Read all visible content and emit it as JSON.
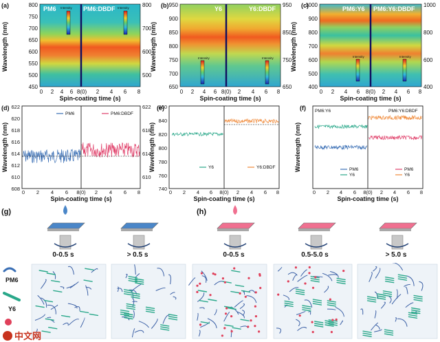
{
  "heatmaps": [
    {
      "label": "(a)",
      "left": "PM6",
      "right": "PM6:DBDF",
      "ylim": [
        450,
        800
      ],
      "yticks": [
        "450",
        "500",
        "550",
        "600",
        "650",
        "700",
        "750",
        "800"
      ]
    },
    {
      "label": "(b)",
      "left": "Y6",
      "right": "Y6:DBDF",
      "ylim": [
        650,
        950
      ],
      "yticks": [
        "650",
        "700",
        "750",
        "800",
        "850",
        "900",
        "950"
      ]
    },
    {
      "label": "(c)",
      "left": "PM6:Y6",
      "right": "PM6:Y6:DBDF",
      "ylim": [
        400,
        1000
      ],
      "yticks": [
        "400",
        "500",
        "600",
        "700",
        "800",
        "900",
        "1000"
      ]
    }
  ],
  "heatmap_xlabel": "Spin-coating time (s)",
  "heatmap_ylabel": "Wavelength (nm)",
  "xticks": [
    "0",
    "2",
    "4",
    "6",
    "8(0)",
    "2",
    "4",
    "6",
    "8"
  ],
  "colorbar_title": "Intensity",
  "colorbar_a": [
    "0.40",
    "0.30",
    "0.20",
    "0.10",
    "0.00"
  ],
  "colorbar_b": [
    "0.75",
    "0.60",
    "0.45",
    "0.30",
    "0.15",
    "0.00"
  ],
  "colorbar_c": [
    "0.40",
    "0.30",
    "0.20",
    "0.10",
    "0.00"
  ],
  "traces": [
    {
      "label": "(d)",
      "legend": [
        "PM6",
        "PM6:DBDF"
      ],
      "ylim": [
        608,
        622
      ],
      "yticks": [
        "608",
        "610",
        "612",
        "614",
        "616",
        "618",
        "620",
        "622"
      ]
    },
    {
      "label": "(e)",
      "legend": [
        "Y6",
        "Y6:DBDF"
      ],
      "ylim": [
        740,
        860
      ],
      "yticks": [
        "740",
        "760",
        "780",
        "800",
        "820",
        "840",
        "860"
      ]
    },
    {
      "label": "(f)",
      "legend": [
        "PM6",
        "Y6",
        "PM6",
        "Y6"
      ],
      "left": "PM6:Y6",
      "right": "PM6:Y6:DBDF"
    }
  ],
  "trace_xlabel": "Spin-coating time (s)",
  "trace_ylabel": "Wavelength (nm)",
  "panel_g": "(g)",
  "panel_h": "(h)",
  "stages_g": [
    "0-0.5 s",
    "> 0.5 s"
  ],
  "stages_h": [
    "0-0.5 s",
    "0.5-5.0 s",
    "> 5.0 s"
  ],
  "legend": {
    "pm6": "PM6",
    "y6": "Y6"
  },
  "watermark": "中文网",
  "colors": {
    "pm6": "#3a6fb5",
    "y6": "#2aa88a",
    "dbdf": "#e0406a",
    "y6dbdf": "#f08a3a",
    "stage_g": "#4a86c8",
    "stage_h": "#f07090"
  },
  "chart_data": [
    {
      "type": "heatmap",
      "title": "PM6 / PM6:DBDF",
      "xlabel": "Spin-coating time (s)",
      "ylabel": "Wavelength (nm)",
      "ylim": [
        450,
        800
      ],
      "peak_band_nm": [
        560,
        640
      ]
    },
    {
      "type": "heatmap",
      "title": "Y6 / Y6:DBDF",
      "xlabel": "Spin-coating time (s)",
      "ylabel": "Wavelength (nm)",
      "ylim": [
        650,
        950
      ],
      "peak_band_nm": [
        790,
        870
      ]
    },
    {
      "type": "heatmap",
      "title": "PM6:Y6 / PM6:Y6:DBDF",
      "xlabel": "Spin-coating time (s)",
      "ylabel": "Wavelength (nm)",
      "ylim": [
        400,
        1000
      ],
      "peak_band_nm": [
        560,
        860
      ]
    },
    {
      "type": "line",
      "xlabel": "Spin-coating time (s)",
      "ylabel": "Wavelength (nm)",
      "ylim": [
        608,
        622
      ],
      "series": [
        {
          "name": "PM6",
          "mean": 615.0
        },
        {
          "name": "PM6:DBDF",
          "mean": 616.8
        }
      ]
    },
    {
      "type": "line",
      "xlabel": "Spin-coating time (s)",
      "ylabel": "Wavelength (nm)",
      "ylim": [
        740,
        860
      ],
      "series": [
        {
          "name": "Y6",
          "mean": 822
        },
        {
          "name": "Y6:DBDF",
          "mean": 835
        }
      ]
    },
    {
      "type": "line",
      "xlabel": "Spin-coating time (s)",
      "ylabel": "Wavelength (nm)",
      "series": [
        {
          "name": "PM6",
          "mean": 623
        },
        {
          "name": "Y6",
          "mean": 822
        },
        {
          "name": "PM6",
          "mean": 626
        },
        {
          "name": "Y6",
          "mean": 836
        }
      ]
    }
  ]
}
